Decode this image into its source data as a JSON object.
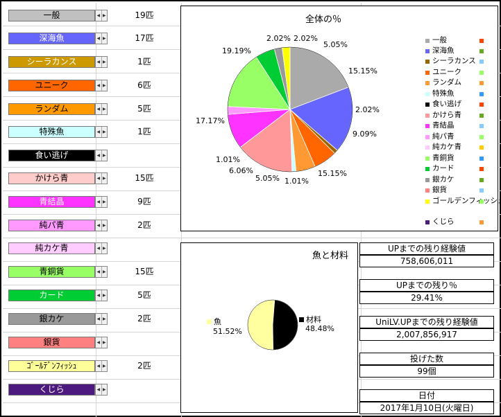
{
  "fish": [
    {
      "label": "一般",
      "count": "19匹",
      "bg": "#c0c0c0",
      "fg": "#000000"
    },
    {
      "label": "深海魚",
      "count": "17匹",
      "bg": "#6666ff",
      "fg": "#ffffff"
    },
    {
      "label": "シーラカンス",
      "count": "1匹",
      "bg": "#cc9900",
      "fg": "#ffffff"
    },
    {
      "label": "ユニーク",
      "count": "6匹",
      "bg": "#ff6600",
      "fg": "#000000"
    },
    {
      "label": "ランダム",
      "count": "5匹",
      "bg": "#ff9900",
      "fg": "#000000"
    },
    {
      "label": "特殊魚",
      "count": "1匹",
      "bg": "#ccffff",
      "fg": "#000000"
    },
    {
      "label": "食い逃げ",
      "count": "",
      "bg": "#000000",
      "fg": "#ffffff"
    },
    {
      "label": "かけら青",
      "count": "15匹",
      "bg": "#ffcccc",
      "fg": "#000000"
    },
    {
      "label": "青結晶",
      "count": "9匹",
      "bg": "#ff33ff",
      "fg": "#ffffff"
    },
    {
      "label": "純パ青",
      "count": "2匹",
      "bg": "#ff99ff",
      "fg": "#000000"
    },
    {
      "label": "純カケ青",
      "count": "",
      "bg": "#ffccff",
      "fg": "#000000"
    },
    {
      "label": "青銅貨",
      "count": "15匹",
      "bg": "#99ff66",
      "fg": "#000000"
    },
    {
      "label": "カード",
      "count": "5匹",
      "bg": "#00cc33",
      "fg": "#ffffff"
    },
    {
      "label": "銀カケ",
      "count": "2匹",
      "bg": "#999999",
      "fg": "#000000"
    },
    {
      "label": "銀貨",
      "count": "",
      "bg": "#ff8080",
      "fg": "#000000"
    },
    {
      "label": "ｺﾞｰﾙﾃﾞﾝﾌｨｯｼｭ",
      "count": "2匹",
      "bg": "#ffff99",
      "fg": "#000000"
    },
    {
      "label": "くじら",
      "count": "",
      "bg": "#4d1a80",
      "fg": "#ffffff"
    }
  ],
  "pie_chart": {
    "title": "全体の％",
    "legend": [
      {
        "label": "一般",
        "color": "#aaaaaa",
        "dot": "#ff4400"
      },
      {
        "label": "深海魚",
        "color": "#6666ff",
        "dot": "#66aa22"
      },
      {
        "label": "シーラカンス",
        "color": "#996600",
        "dot": "#88ccff"
      },
      {
        "label": "ユニーク",
        "color": "#ff6600",
        "dot": "#99ff66"
      },
      {
        "label": "ランダム",
        "color": "#ff9933",
        "dot": "#ff9933"
      },
      {
        "label": "特殊魚",
        "color": "#ccffff",
        "dot": "#3399ff"
      },
      {
        "label": "食い逃げ",
        "color": "#000000",
        "dot": "#ff4400"
      },
      {
        "label": "かけら青",
        "color": "#ff9999",
        "dot": "#66aa22"
      },
      {
        "label": "青結晶",
        "color": "#ff33ff",
        "dot": "#88ccff"
      },
      {
        "label": "純パ青",
        "color": "#ff99ff",
        "dot": "#99ff66"
      },
      {
        "label": "純カケ青",
        "color": "#ffccff",
        "dot": "#ffcc00"
      },
      {
        "label": "青銅貨",
        "color": "#99ff66",
        "dot": "#3399ff"
      },
      {
        "label": "カード",
        "color": "#00cc33",
        "dot": "#ff4400"
      },
      {
        "label": "銀カケ",
        "color": "#999999",
        "dot": "#66aa22"
      },
      {
        "label": "銀貨",
        "color": "#ff8080",
        "dot": "#88ccff"
      },
      {
        "label": "ゴールデンフィッシュ",
        "color": "#ffff00",
        "dot": "#99ff66"
      },
      {
        "label": "くじら",
        "color": "#4d1a80",
        "dot": "#ff9933"
      }
    ]
  },
  "ratio_chart": {
    "title": "魚と材料"
  },
  "chart_data": [
    {
      "type": "pie",
      "title": "全体の％",
      "categories": [
        "一般",
        "深海魚",
        "シーラカンス",
        "ユニーク",
        "ランダム",
        "特殊魚",
        "食い逃げ",
        "かけら青",
        "青結晶",
        "純パ青",
        "純カケ青",
        "青銅貨",
        "カード",
        "銀カケ",
        "銀貨",
        "ゴールデンフィッシュ",
        "くじら"
      ],
      "values": [
        19.19,
        17.17,
        1.01,
        6.06,
        5.05,
        1.01,
        0,
        15.15,
        9.09,
        2.02,
        0,
        15.15,
        5.05,
        2.02,
        0,
        2.02,
        0
      ],
      "labels": [
        "19.19%",
        "17.17%",
        "1.01%",
        "6.06%",
        "5.05%",
        "1.01%",
        "",
        "15.15%",
        "9.09%",
        "2.02%",
        "",
        "15.15%",
        "5.05%",
        "2.02%",
        "",
        "2.02%",
        ""
      ],
      "colors": [
        "#aaaaaa",
        "#6666ff",
        "#996600",
        "#ff6600",
        "#ff9933",
        "#ccffff",
        "#000000",
        "#ff9999",
        "#ff33ff",
        "#ff99ff",
        "#ffccff",
        "#99ff66",
        "#00cc33",
        "#999999",
        "#ff8080",
        "#ffff00",
        "#4d1a80"
      ],
      "legend": "right"
    },
    {
      "type": "pie",
      "title": "魚と材料",
      "categories": [
        "魚",
        "材料"
      ],
      "values": [
        51.52,
        48.48
      ],
      "labels": [
        "51.52%",
        "48.48%"
      ],
      "colors": [
        "#ffffa0",
        "#000000"
      ]
    }
  ],
  "stats": [
    {
      "label": "UPまでの残り経験値",
      "value": "758,606,011"
    },
    {
      "label": "UPまでの残り％",
      "value": "29.41%"
    },
    {
      "label": "UniLV.UPまでの残り経験値",
      "value": "2,007,856,917"
    },
    {
      "label": "投げた数",
      "value": "99個"
    },
    {
      "label": "日付",
      "value": "2017年1月10日(火曜日)"
    }
  ]
}
